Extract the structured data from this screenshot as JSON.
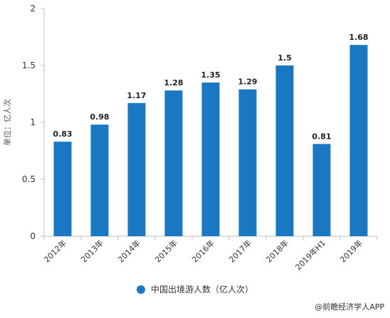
{
  "chart_data": {
    "type": "bar",
    "categories": [
      "2012年",
      "2013年",
      "2014年",
      "2015年",
      "2016年",
      "2017年",
      "2018年",
      "2019年H1",
      "2019年"
    ],
    "values": [
      0.83,
      0.98,
      1.17,
      1.28,
      1.35,
      1.29,
      1.5,
      0.81,
      1.68
    ],
    "value_labels": [
      "0.83",
      "0.98",
      "1.17",
      "1.28",
      "1.35",
      "1.29",
      "1.5",
      "0.81",
      "1.68"
    ],
    "ylabel": "单位：亿人次",
    "ylim": [
      0,
      2
    ],
    "yticks": [
      "0",
      "0.5",
      "1",
      "1.5",
      "2"
    ],
    "legend": "中国出境游人数（亿人次）",
    "legend_position": "bottom",
    "grid": false,
    "bar_color": "#1a78c2"
  },
  "footer": {
    "credit": "@前瞻经济学人APP"
  }
}
